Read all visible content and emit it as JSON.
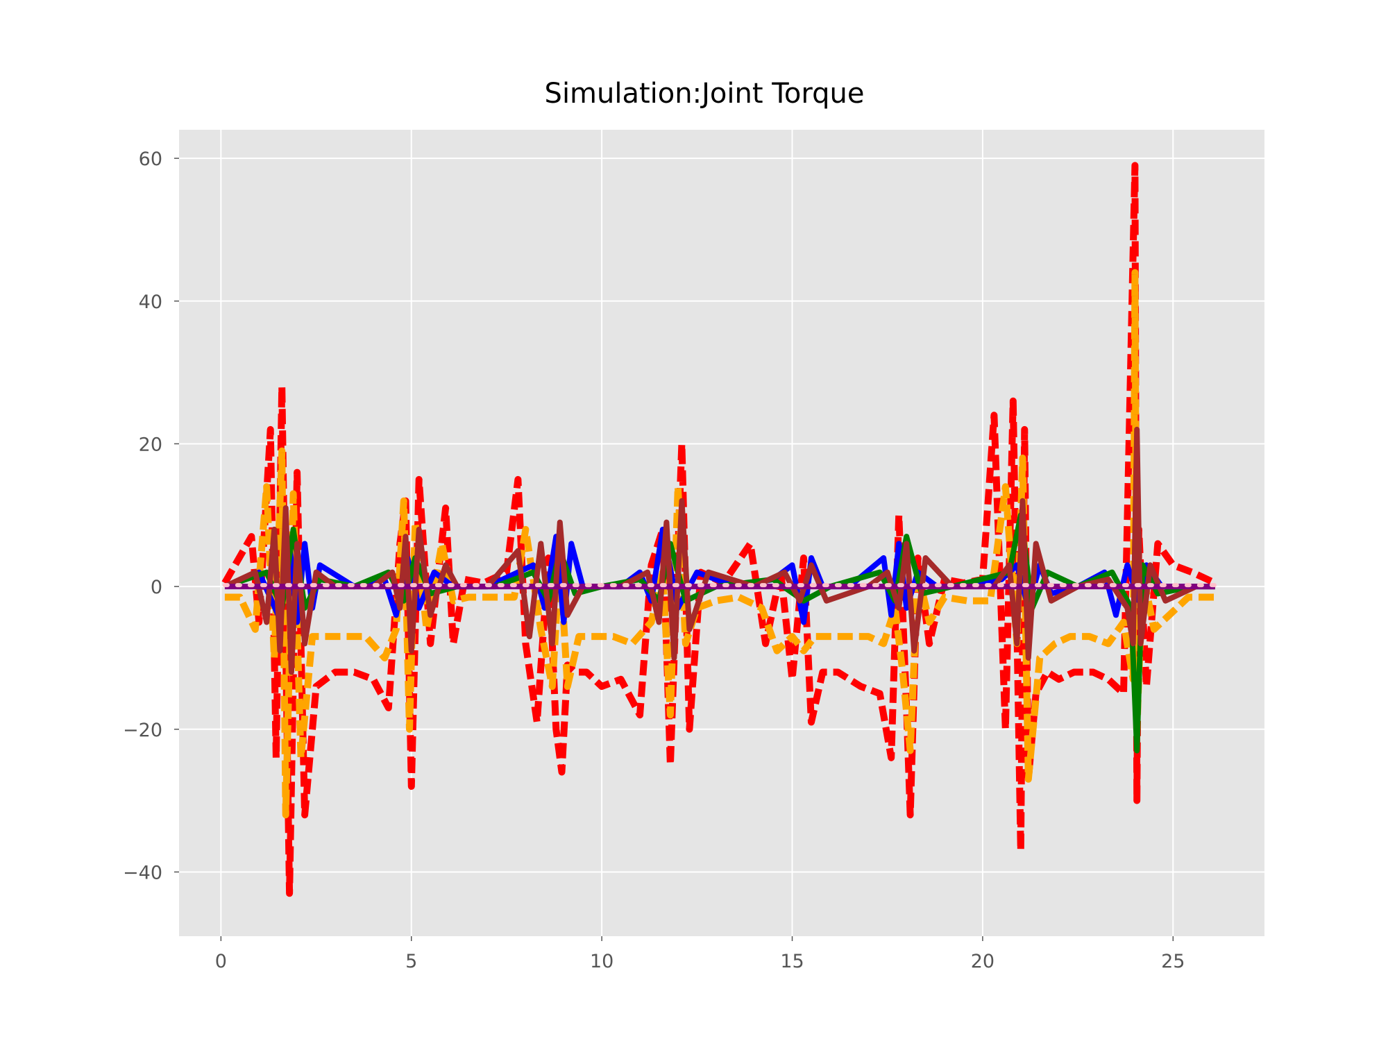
{
  "chart_data": {
    "type": "line",
    "title": "Simulation:Joint Torque",
    "xlabel": "",
    "ylabel": "",
    "xlim": [
      -1.1,
      27.4
    ],
    "ylim": [
      -49,
      64
    ],
    "grid": true,
    "legend": "none",
    "colors": {
      "background": "#e5e5e5",
      "grid": "#ffffff",
      "tick_text": "#555555"
    },
    "x_ticks": [
      0,
      5,
      10,
      15,
      20,
      25
    ],
    "x_tick_labels": [
      "0",
      "5",
      "10",
      "15",
      "20",
      "25"
    ],
    "y_ticks": [
      -40,
      -20,
      0,
      20,
      40,
      60
    ],
    "y_tick_labels": [
      "−40",
      "−20",
      "0",
      "20",
      "40",
      "60"
    ],
    "series": [
      {
        "color": "#ff0000",
        "style": "dashed",
        "x": [
          0.1,
          0.8,
          1.0,
          1.3,
          1.45,
          1.6,
          1.8,
          2.0,
          2.2,
          2.5,
          3.0,
          3.5,
          4.0,
          4.4,
          4.7,
          4.85,
          5.0,
          5.2,
          5.5,
          5.9,
          6.1,
          6.4,
          6.9,
          7.5,
          7.8,
          8.0,
          8.3,
          8.6,
          8.8,
          8.95,
          9.1,
          9.3,
          9.6,
          10.0,
          10.5,
          11.0,
          11.3,
          11.6,
          11.8,
          12.1,
          12.3,
          12.6,
          13.2,
          13.9,
          14.3,
          14.7,
          15.0,
          15.3,
          15.5,
          15.8,
          16.2,
          16.8,
          17.3,
          17.6,
          17.8,
          18.0,
          18.1,
          18.3,
          18.6,
          19.0,
          19.5,
          20.0,
          20.3,
          20.6,
          20.8,
          21.0,
          21.1,
          21.2,
          21.4,
          21.7,
          22.0,
          22.4,
          22.9,
          23.3,
          23.7,
          24.0,
          24.05,
          24.1,
          24.3,
          24.6,
          25.0,
          25.5,
          26.1
        ],
        "y": [
          0.5,
          7,
          -5,
          22,
          -24,
          28,
          -43,
          16,
          -32,
          -14,
          -12,
          -12,
          -13,
          -17,
          6,
          12,
          -28,
          15,
          -8,
          11,
          -8,
          1,
          0.5,
          2,
          15,
          -8,
          -19,
          4,
          -20,
          -26,
          -11,
          -12,
          -12,
          -14,
          -13,
          -18,
          3,
          8,
          -25,
          20,
          -20,
          2,
          0.5,
          6,
          -8,
          2,
          -13,
          4,
          -19,
          -12,
          -12,
          -14,
          -15,
          -24,
          10,
          -17,
          -32,
          4,
          -8,
          1,
          0.5,
          1,
          24,
          -20,
          26,
          -37,
          22,
          -27,
          -15,
          -12,
          -13,
          -12,
          -12,
          -13,
          -15,
          59,
          -30,
          8,
          -14,
          6,
          3,
          2,
          0.5
        ]
      },
      {
        "color": "#ffa500",
        "style": "dashed",
        "x": [
          0.1,
          0.5,
          0.9,
          1.2,
          1.4,
          1.6,
          1.7,
          1.9,
          2.1,
          2.4,
          2.8,
          3.3,
          3.8,
          4.3,
          4.6,
          4.8,
          4.95,
          5.1,
          5.4,
          5.8,
          6.1,
          6.5,
          7.1,
          7.7,
          8.0,
          8.4,
          8.7,
          8.9,
          9.1,
          9.4,
          9.8,
          10.3,
          10.8,
          11.3,
          11.6,
          11.8,
          12.0,
          12.2,
          12.5,
          13.0,
          13.6,
          14.2,
          14.6,
          15.0,
          15.3,
          15.6,
          16.0,
          16.5,
          17.0,
          17.4,
          17.7,
          17.9,
          18.1,
          18.3,
          18.6,
          19.0,
          19.6,
          20.2,
          20.6,
          20.9,
          21.05,
          21.2,
          21.5,
          21.9,
          22.3,
          22.8,
          23.3,
          23.7,
          23.95,
          24.0,
          24.05,
          24.2,
          24.5,
          24.9,
          25.4,
          26.1
        ],
        "y": [
          -1.5,
          -1.5,
          -6,
          14,
          -10,
          19,
          -32,
          13,
          -24,
          -7,
          -7,
          -7,
          -7,
          -10,
          -6,
          12,
          -20,
          9,
          -6,
          6,
          -2,
          -1.5,
          -1.5,
          -1.5,
          8,
          -6,
          -14,
          4,
          -14,
          -7,
          -7,
          -7,
          -8,
          -5,
          2,
          -18,
          14,
          -8,
          -3,
          -2,
          -1.5,
          -3,
          -9,
          -7,
          -9,
          -7,
          -7,
          -7,
          -7,
          -8,
          -3,
          -12,
          -23,
          2,
          -5,
          -1.5,
          -2,
          -2,
          14,
          -8,
          18,
          -27,
          -10,
          -8,
          -7,
          -7,
          -8,
          -5,
          -13,
          44,
          -20,
          2,
          -6,
          -4,
          -1.5,
          -1.5
        ]
      },
      {
        "color": "#0000ff",
        "style": "solid",
        "x": [
          0.1,
          1.0,
          1.5,
          1.8,
          2.0,
          2.2,
          2.4,
          2.6,
          3.5,
          4.3,
          4.6,
          4.9,
          5.2,
          5.6,
          6.1,
          7.0,
          8.2,
          8.5,
          8.8,
          9.0,
          9.2,
          9.5,
          10.5,
          11.0,
          11.3,
          11.6,
          12.0,
          12.5,
          13.5,
          14.5,
          15.0,
          15.3,
          15.5,
          15.8,
          16.5,
          17.4,
          17.6,
          17.8,
          18.0,
          18.3,
          18.8,
          19.5,
          20.5,
          20.9,
          21.2,
          21.5,
          21.8,
          22.5,
          23.2,
          23.5,
          23.8,
          24.1,
          24.3,
          24.7,
          25.5,
          26.1
        ],
        "y": [
          0,
          2,
          -4,
          6,
          -5,
          6,
          -3,
          3,
          0,
          1,
          -4,
          4,
          -3,
          2,
          0,
          0,
          3,
          -3,
          7,
          -5,
          6,
          0,
          0,
          2,
          -2,
          8,
          -3,
          2,
          0,
          1,
          3,
          -5,
          4,
          0,
          0,
          4,
          -4,
          6,
          -3,
          2,
          0,
          0,
          1,
          3,
          -3,
          3,
          -1,
          0,
          2,
          -4,
          3,
          -2,
          3,
          0,
          0,
          0
        ]
      },
      {
        "color": "#008000",
        "style": "solid",
        "x": [
          0.1,
          1.2,
          1.6,
          1.9,
          2.2,
          2.6,
          3.5,
          4.4,
          4.8,
          5.1,
          5.5,
          6.2,
          7.2,
          8.2,
          8.6,
          8.9,
          9.3,
          10.0,
          11.0,
          11.5,
          11.8,
          12.2,
          13.0,
          14.5,
          15.3,
          16.0,
          17.3,
          17.7,
          18.0,
          18.4,
          19.2,
          20.7,
          21.0,
          21.3,
          21.7,
          22.5,
          23.4,
          23.9,
          24.05,
          24.2,
          24.6,
          25.5,
          26.1
        ],
        "y": [
          0,
          2,
          -3,
          8,
          -3,
          1,
          0,
          2,
          -2,
          4,
          -1,
          0,
          0,
          2,
          -2,
          5,
          -1,
          0,
          1,
          -2,
          6,
          -2,
          0,
          1,
          -2,
          0,
          2,
          -2,
          7,
          -1,
          0,
          2,
          10,
          -3,
          2,
          0,
          2,
          -3,
          -23,
          3,
          -1,
          0,
          0
        ]
      },
      {
        "color": "#a52a2a",
        "style": "solid",
        "x": [
          0.1,
          0.9,
          1.2,
          1.4,
          1.55,
          1.7,
          1.85,
          2.0,
          2.2,
          2.5,
          3.0,
          4.0,
          4.5,
          4.7,
          4.85,
          5.0,
          5.2,
          5.5,
          5.9,
          6.2,
          7.0,
          7.8,
          8.1,
          8.4,
          8.7,
          8.9,
          9.1,
          9.5,
          10.5,
          11.2,
          11.5,
          11.7,
          11.9,
          12.1,
          12.3,
          12.8,
          14.0,
          14.8,
          15.2,
          15.5,
          15.9,
          17.0,
          17.5,
          17.8,
          18.0,
          18.2,
          18.5,
          19.2,
          20.3,
          20.7,
          20.9,
          21.05,
          21.2,
          21.4,
          21.8,
          22.5,
          23.3,
          23.8,
          23.95,
          24.05,
          24.15,
          24.4,
          24.8,
          25.6,
          26.1
        ],
        "y": [
          0,
          2,
          -5,
          8,
          -9,
          11,
          -12,
          6,
          -8,
          2,
          0,
          0,
          2,
          -3,
          7,
          -9,
          8,
          -4,
          3,
          0,
          0,
          5,
          -7,
          6,
          -8,
          9,
          -4,
          0,
          0,
          2,
          -5,
          9,
          -10,
          12,
          -6,
          2,
          0,
          2,
          -2,
          3,
          -2,
          0,
          2,
          -3,
          6,
          -9,
          4,
          0,
          0,
          3,
          -8,
          12,
          -10,
          6,
          -2,
          0,
          1,
          -3,
          -8,
          22,
          -8,
          3,
          -2,
          0,
          0
        ]
      },
      {
        "color": "#800080",
        "style": "solid",
        "x": [
          0.1,
          26.1
        ],
        "y": [
          0,
          0
        ]
      },
      {
        "color": "#ffc0cb",
        "style": "dotted",
        "x": [
          0.1,
          26.1
        ],
        "y": [
          0.2,
          0.2
        ]
      }
    ]
  }
}
